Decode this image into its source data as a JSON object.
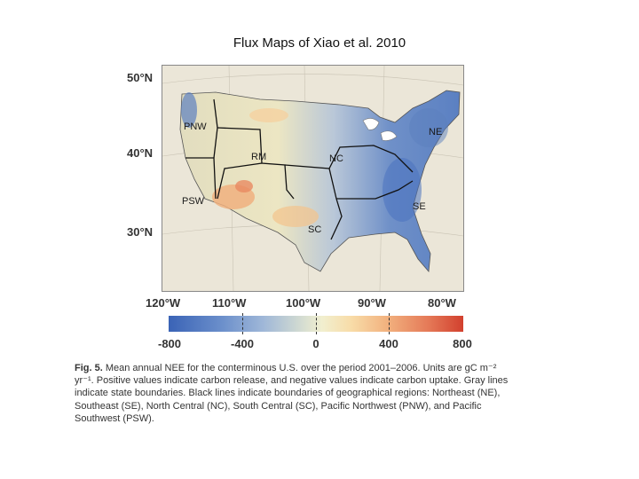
{
  "slide": {
    "title": "Flux Maps of Xiao et al. 2010"
  },
  "map": {
    "latitude_labels": [
      "50°N",
      "40°N",
      "30°N"
    ],
    "longitude_labels": [
      "120°W",
      "110°W",
      "100°W",
      "90°W",
      "80°W"
    ],
    "regions": [
      "PNW",
      "RM",
      "NC",
      "NE",
      "PSW",
      "SC",
      "SE"
    ],
    "colors": {
      "strong_uptake": "#4a73bf",
      "moderate_uptake": "#8fabd6",
      "neutral": "#ece9c9",
      "release": "#f0b07f",
      "strong_release": "#d2402e"
    }
  },
  "colorbar": {
    "labels": [
      "-800",
      "-400",
      "0",
      "400",
      "800"
    ],
    "values": [
      -800,
      -400,
      0,
      400,
      800
    ]
  },
  "caption": {
    "fig_label": "Fig. 5.",
    "text": "Mean annual NEE for the conterminous U.S. over the period 2001–2006. Units are gC m⁻² yr⁻¹. Positive values indicate carbon release, and negative values indicate carbon uptake. Gray lines indicate state boundaries. Black lines indicate boundaries of geographical regions: Northeast (NE), Southeast (SE), North Central (NC), South Central (SC), Pacific Northwest (PNW), and Pacific Southwest (PSW)."
  }
}
